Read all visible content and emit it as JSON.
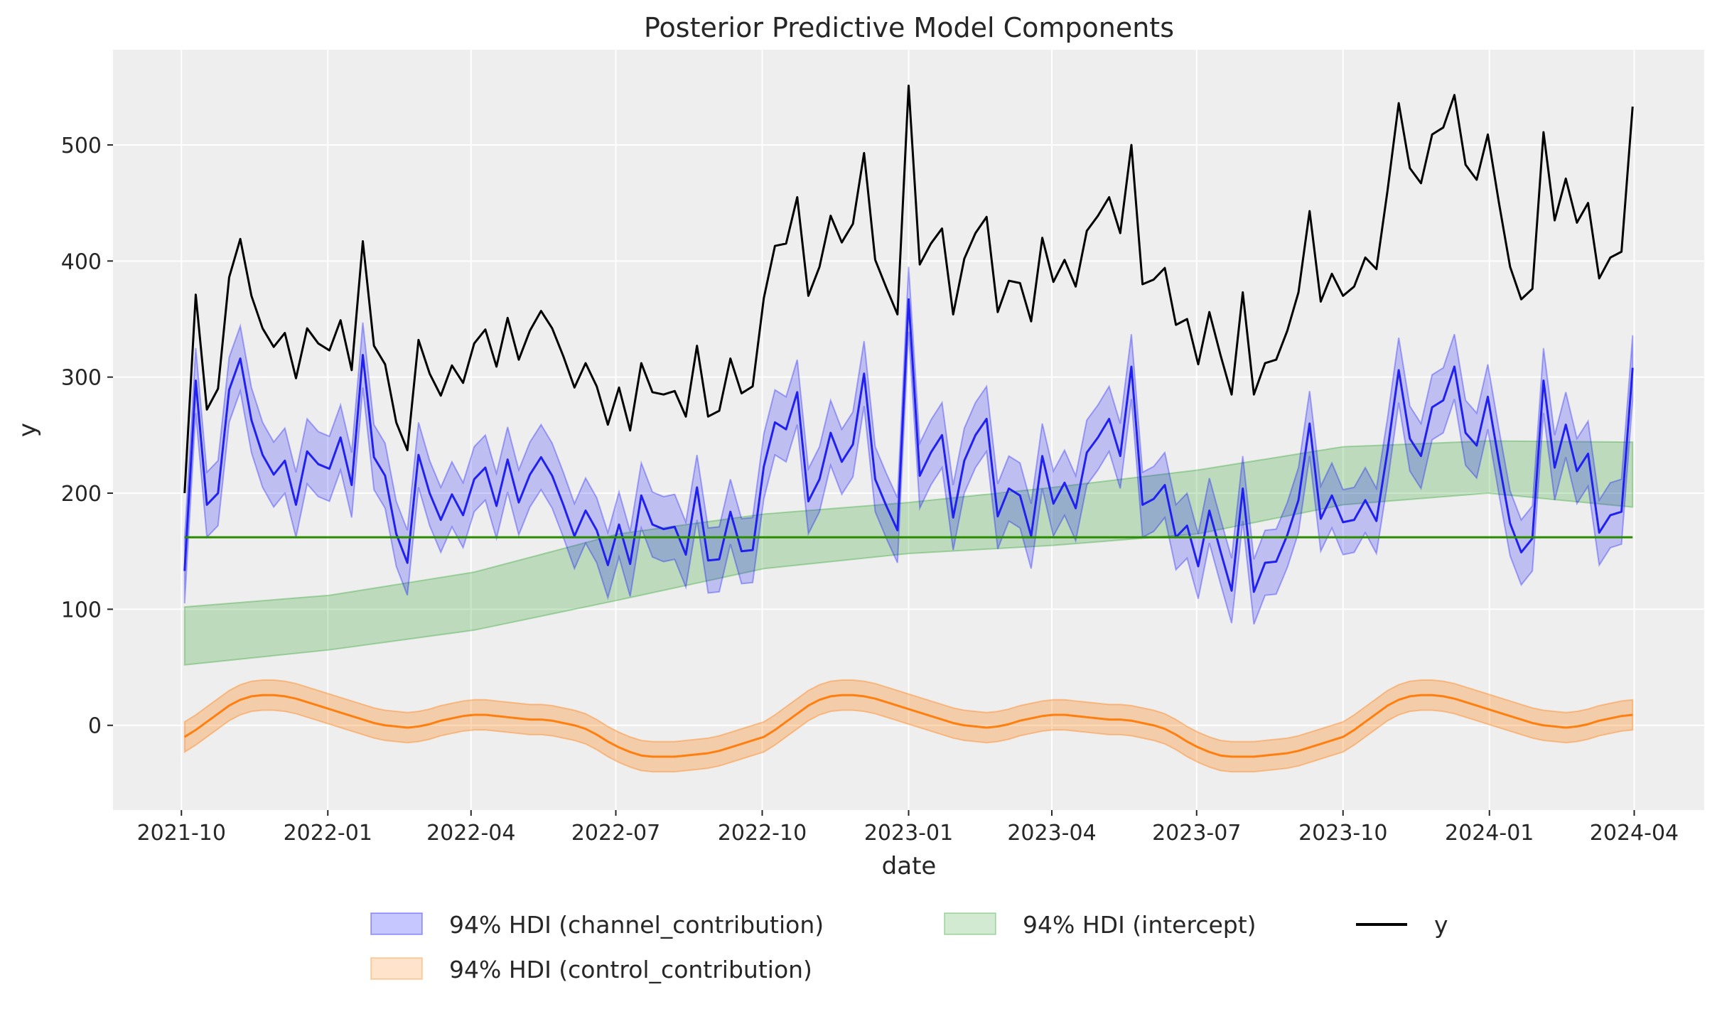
{
  "chart_data": {
    "type": "line",
    "title": "Posterior Predictive Model Components",
    "xlabel": "date",
    "ylabel": "y",
    "xlim": [
      "2021-08-19",
      "2024-05-15"
    ],
    "ylim": [
      -73,
      582
    ],
    "grid": true,
    "legend_placement": "bottom-center",
    "x_ticks": [
      "2021-10",
      "2022-01",
      "2022-04",
      "2022-07",
      "2022-10",
      "2023-01",
      "2023-04",
      "2023-07",
      "2023-10",
      "2024-01",
      "2024-04"
    ],
    "y_ticks": [
      0,
      100,
      200,
      300,
      400,
      500
    ],
    "x": [
      "2021-10-03",
      "2021-10-10",
      "2021-10-17",
      "2021-10-24",
      "2021-10-31",
      "2021-11-07",
      "2021-11-14",
      "2021-11-21",
      "2021-11-28",
      "2021-12-05",
      "2021-12-12",
      "2021-12-19",
      "2021-12-26",
      "2022-01-02",
      "2022-01-09",
      "2022-01-16",
      "2022-01-23",
      "2022-01-30",
      "2022-02-06",
      "2022-02-13",
      "2022-02-20",
      "2022-02-27",
      "2022-03-06",
      "2022-03-13",
      "2022-03-20",
      "2022-03-27",
      "2022-04-03",
      "2022-04-10",
      "2022-04-17",
      "2022-04-24",
      "2022-05-01",
      "2022-05-08",
      "2022-05-15",
      "2022-05-22",
      "2022-05-29",
      "2022-06-05",
      "2022-06-12",
      "2022-06-19",
      "2022-06-26",
      "2022-07-03",
      "2022-07-10",
      "2022-07-17",
      "2022-07-24",
      "2022-07-31",
      "2022-08-07",
      "2022-08-14",
      "2022-08-21",
      "2022-08-28",
      "2022-09-04",
      "2022-09-11",
      "2022-09-18",
      "2022-09-25",
      "2022-10-02",
      "2022-10-09",
      "2022-10-16",
      "2022-10-23",
      "2022-10-30",
      "2022-11-06",
      "2022-11-13",
      "2022-11-20",
      "2022-11-27",
      "2022-12-04",
      "2022-12-11",
      "2022-12-18",
      "2022-12-25",
      "2023-01-01",
      "2023-01-08",
      "2023-01-15",
      "2023-01-22",
      "2023-01-29",
      "2023-02-05",
      "2023-02-12",
      "2023-02-19",
      "2023-02-26",
      "2023-03-05",
      "2023-03-12",
      "2023-03-19",
      "2023-03-26",
      "2023-04-02",
      "2023-04-09",
      "2023-04-16",
      "2023-04-23",
      "2023-04-30",
      "2023-05-07",
      "2023-05-14",
      "2023-05-21",
      "2023-05-28",
      "2023-06-04",
      "2023-06-11",
      "2023-06-18",
      "2023-06-25",
      "2023-07-02",
      "2023-07-09",
      "2023-07-16",
      "2023-07-23",
      "2023-07-30",
      "2023-08-06",
      "2023-08-13",
      "2023-08-20",
      "2023-08-27",
      "2023-09-03",
      "2023-09-10",
      "2023-09-17",
      "2023-09-24",
      "2023-10-01",
      "2023-10-08",
      "2023-10-15",
      "2023-10-22",
      "2023-10-29",
      "2023-11-05",
      "2023-11-12",
      "2023-11-19",
      "2023-11-26",
      "2023-12-03",
      "2023-12-10",
      "2023-12-17",
      "2023-12-24",
      "2023-12-31",
      "2024-01-07",
      "2024-01-14",
      "2024-01-21",
      "2024-01-28",
      "2024-02-04",
      "2024-02-11",
      "2024-02-18",
      "2024-02-25",
      "2024-03-03",
      "2024-03-10",
      "2024-03-17",
      "2024-03-24",
      "2024-03-31"
    ],
    "series": [
      {
        "name": "y",
        "kind": "line",
        "color": "#000000",
        "values": [
          200,
          371,
          272,
          290,
          386,
          419,
          370,
          342,
          326,
          338,
          299,
          342,
          329,
          323,
          349,
          306,
          417,
          327,
          311,
          261,
          237,
          332,
          303,
          284,
          310,
          295,
          329,
          341,
          309,
          351,
          315,
          340,
          357,
          342,
          318,
          291,
          312,
          292,
          259,
          291,
          254,
          312,
          287,
          285,
          288,
          266,
          327,
          266,
          271,
          316,
          286,
          292,
          368,
          413,
          415,
          455,
          370,
          395,
          439,
          416,
          432,
          493,
          401,
          377,
          354,
          551,
          397,
          415,
          428,
          354,
          402,
          424,
          438,
          356,
          383,
          381,
          348,
          420,
          382,
          401,
          378,
          426,
          439,
          455,
          424,
          500,
          380,
          384,
          394,
          345,
          350,
          311,
          356,
          319,
          285,
          373,
          285,
          312,
          315,
          340,
          373,
          443,
          365,
          389,
          370,
          378,
          403,
          393,
          461,
          536,
          480,
          467,
          509,
          515,
          543,
          483,
          470,
          509,
          450,
          395,
          367,
          376,
          511,
          435,
          471,
          433,
          450,
          385,
          403,
          408,
          533
        ]
      },
      {
        "name": "94% HDI (channel_contribution)",
        "kind": "line+band",
        "color": "#2020f0",
        "band_color": "#0000ff",
        "hdi_halfwidth": 28,
        "values": [
          133,
          297,
          190,
          200,
          289,
          316,
          263,
          233,
          216,
          228,
          190,
          236,
          225,
          221,
          248,
          207,
          319,
          231,
          215,
          165,
          140,
          233,
          200,
          177,
          199,
          181,
          212,
          222,
          189,
          229,
          192,
          216,
          231,
          215,
          190,
          163,
          185,
          168,
          138,
          173,
          139,
          198,
          173,
          169,
          171,
          147,
          205,
          142,
          143,
          184,
          150,
          151,
          223,
          261,
          255,
          287,
          193,
          212,
          252,
          227,
          242,
          303,
          212,
          189,
          168,
          367,
          215,
          235,
          250,
          179,
          228,
          250,
          264,
          180,
          204,
          198,
          163,
          232,
          191,
          209,
          187,
          235,
          248,
          264,
          232,
          309,
          190,
          195,
          207,
          162,
          172,
          137,
          185,
          150,
          116,
          204,
          115,
          140,
          141,
          164,
          194,
          260,
          178,
          198,
          175,
          177,
          194,
          176,
          237,
          306,
          247,
          232,
          274,
          280,
          309,
          252,
          241,
          283,
          227,
          174,
          149,
          161,
          297,
          222,
          259,
          219,
          234,
          166,
          181,
          184,
          308
        ]
      },
      {
        "name": "94% HDI (control_contribution)",
        "kind": "line+band",
        "color": "#ff7f0e",
        "band_color": "#ff7f0e",
        "hdi_halfwidth": 13,
        "values": [
          -10,
          -4,
          3,
          10,
          17,
          22,
          25,
          26,
          26,
          25,
          23,
          20,
          17,
          14,
          11,
          8,
          5,
          2,
          0,
          -1,
          -2,
          -1,
          1,
          4,
          6,
          8,
          9,
          9,
          8,
          7,
          6,
          5,
          5,
          4,
          2,
          0,
          -3,
          -8,
          -14,
          -19,
          -23,
          -26,
          -27,
          -27,
          -27,
          -26,
          -25,
          -24,
          -22,
          -19,
          -16,
          -13,
          -10,
          -4,
          3,
          10,
          17,
          22,
          25,
          26,
          26,
          25,
          23,
          20,
          17,
          14,
          11,
          8,
          5,
          2,
          0,
          -1,
          -2,
          -1,
          1,
          4,
          6,
          8,
          9,
          9,
          8,
          7,
          6,
          5,
          5,
          4,
          2,
          0,
          -3,
          -8,
          -14,
          -19,
          -23,
          -26,
          -27,
          -27,
          -27,
          -26,
          -25,
          -24,
          -22,
          -19,
          -16,
          -13,
          -10,
          -4,
          3,
          10,
          17,
          22,
          25,
          26,
          26,
          25,
          23,
          20,
          17,
          14,
          11,
          8,
          5,
          2,
          0,
          -1,
          -2,
          -1,
          1,
          4,
          6,
          8,
          9
        ]
      },
      {
        "name": "94% HDI (intercept)",
        "kind": "band",
        "color": "#2ca02c",
        "x": [
          "2021-10-03",
          "2022-01-02",
          "2022-04-03",
          "2022-07-03",
          "2022-10-02",
          "2023-01-01",
          "2023-04-02",
          "2023-07-02",
          "2023-10-01",
          "2023-12-31",
          "2024-03-31"
        ],
        "lower": [
          52,
          65,
          82,
          108,
          135,
          148,
          155,
          165,
          190,
          200,
          188
        ],
        "upper": [
          102,
          112,
          132,
          165,
          182,
          192,
          205,
          220,
          240,
          245,
          244
        ]
      }
    ],
    "hline": {
      "value": 162,
      "color": "#2a8a00"
    },
    "legend": [
      {
        "label": "94% HDI (channel_contribution)",
        "marker": "patch",
        "color": "#0000ff"
      },
      {
        "label": "94% HDI (intercept)",
        "marker": "patch",
        "color": "#2ca02c"
      },
      {
        "label": "y",
        "marker": "line",
        "color": "#000000"
      },
      {
        "label": "94% HDI (control_contribution)",
        "marker": "patch",
        "color": "#ff7f0e"
      }
    ]
  }
}
